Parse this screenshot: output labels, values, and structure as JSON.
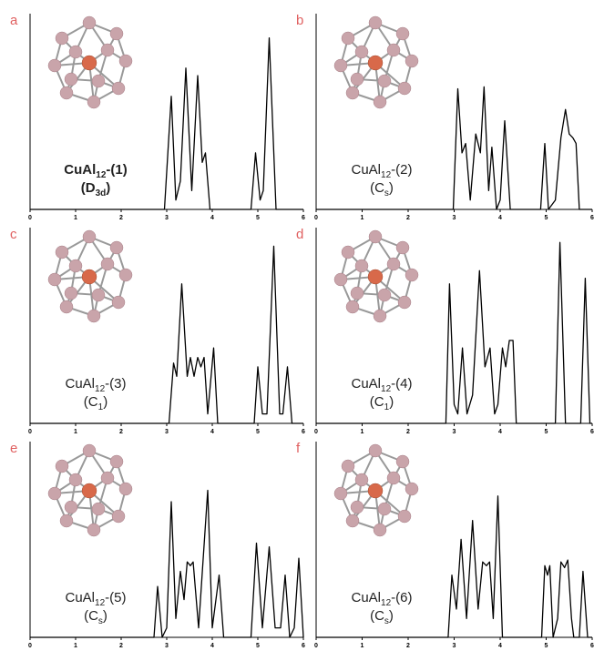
{
  "chart_data": [
    {
      "type": "line",
      "panel": "a",
      "bold": true,
      "label": {
        "text": "CuAl",
        "sub": "12",
        "sup": "-",
        "rest": "(1)"
      },
      "symmetry": {
        "text": "(D",
        "sub": "3d",
        "rest": ")"
      },
      "xlim": [
        0,
        6
      ],
      "xticks": [
        0,
        1,
        2,
        3,
        4,
        5,
        6
      ],
      "ylim": [
        0,
        1
      ],
      "color": "#000000",
      "x": [
        0,
        2.95,
        3.1,
        3.2,
        3.3,
        3.42,
        3.55,
        3.68,
        3.78,
        3.85,
        3.95,
        4.85,
        4.95,
        5.05,
        5.12,
        5.25,
        5.4,
        6
      ],
      "values": [
        0,
        0,
        0.6,
        0.05,
        0.15,
        0.75,
        0.1,
        0.71,
        0.25,
        0.3,
        0,
        0,
        0.3,
        0.05,
        0.1,
        0.91,
        0,
        0
      ]
    },
    {
      "type": "line",
      "panel": "b",
      "bold": false,
      "label": {
        "text": "CuAl",
        "sub": "12",
        "sup": "-",
        "rest": "(2)"
      },
      "symmetry": {
        "text": "(C",
        "sub": "s",
        "rest": ")"
      },
      "xlim": [
        0,
        6
      ],
      "xticks": [
        0,
        1,
        2,
        3,
        4,
        5,
        6
      ],
      "ylim": [
        0,
        1
      ],
      "color": "#000000",
      "x": [
        0,
        2.98,
        3.08,
        3.17,
        3.25,
        3.35,
        3.47,
        3.57,
        3.65,
        3.75,
        3.82,
        3.92,
        4.0,
        4.1,
        4.22,
        4.88,
        4.97,
        5.05,
        5.2,
        5.32,
        5.42,
        5.5,
        5.58,
        5.65,
        5.72,
        6
      ],
      "values": [
        0,
        0,
        0.64,
        0.3,
        0.35,
        0.05,
        0.4,
        0.3,
        0.65,
        0.1,
        0.33,
        0,
        0.05,
        0.47,
        0,
        0,
        0.35,
        0,
        0.05,
        0.38,
        0.53,
        0.4,
        0.38,
        0.35,
        0,
        0
      ]
    },
    {
      "type": "line",
      "panel": "c",
      "bold": false,
      "label": {
        "text": "CuAl",
        "sub": "12",
        "sup": "-",
        "rest": "(3)"
      },
      "symmetry": {
        "text": "(C",
        "sub": "1",
        "rest": ")"
      },
      "xlim": [
        0,
        6
      ],
      "xticks": [
        0,
        1,
        2,
        3,
        4,
        5,
        6
      ],
      "ylim": [
        0,
        1
      ],
      "color": "#000000",
      "x": [
        0,
        3.05,
        3.15,
        3.22,
        3.33,
        3.45,
        3.52,
        3.6,
        3.68,
        3.75,
        3.82,
        3.9,
        4.03,
        4.12,
        4.92,
        5.0,
        5.1,
        5.2,
        5.35,
        5.48,
        5.55,
        5.65,
        5.75,
        6
      ],
      "values": [
        0,
        0,
        0.32,
        0.25,
        0.74,
        0.25,
        0.35,
        0.25,
        0.35,
        0.3,
        0.35,
        0.05,
        0.4,
        0,
        0,
        0.3,
        0.05,
        0.05,
        0.94,
        0.05,
        0.05,
        0.3,
        0,
        0
      ]
    },
    {
      "type": "line",
      "panel": "d",
      "bold": false,
      "label": {
        "text": "CuAl",
        "sub": "12",
        "sup": "-",
        "rest": "(4)"
      },
      "symmetry": {
        "text": "(C",
        "sub": "1",
        "rest": ")"
      },
      "xlim": [
        0,
        6
      ],
      "xticks": [
        0,
        1,
        2,
        3,
        4,
        5,
        6
      ],
      "ylim": [
        0,
        1
      ],
      "color": "#000000",
      "x": [
        0,
        2.82,
        2.9,
        3.0,
        3.08,
        3.18,
        3.28,
        3.4,
        3.55,
        3.67,
        3.78,
        3.88,
        3.95,
        4.05,
        4.12,
        4.2,
        4.28,
        4.35,
        5.2,
        5.3,
        5.42,
        5.75,
        5.85,
        5.95,
        6
      ],
      "values": [
        0,
        0,
        0.74,
        0.1,
        0.05,
        0.4,
        0.05,
        0.15,
        0.81,
        0.3,
        0.4,
        0.05,
        0.1,
        0.4,
        0.3,
        0.44,
        0.44,
        0,
        0,
        0.96,
        0,
        0,
        0.77,
        0,
        0
      ]
    },
    {
      "type": "line",
      "panel": "e",
      "bold": false,
      "label": {
        "text": "CuAl",
        "sub": "12",
        "sup": "-",
        "rest": "(5)"
      },
      "symmetry": {
        "text": "(C",
        "sub": "s",
        "rest": ")"
      },
      "xlim": [
        0,
        6
      ],
      "xticks": [
        0,
        1,
        2,
        3,
        4,
        5,
        6
      ],
      "ylim": [
        0,
        1
      ],
      "color": "#000000",
      "x": [
        0,
        2.72,
        2.8,
        2.9,
        3.0,
        3.1,
        3.2,
        3.3,
        3.38,
        3.45,
        3.52,
        3.58,
        3.7,
        3.9,
        4.0,
        4.15,
        4.25,
        4.85,
        4.97,
        5.1,
        5.25,
        5.38,
        5.5,
        5.6,
        5.7,
        5.8,
        5.9,
        6
      ],
      "values": [
        0,
        0,
        0.27,
        0,
        0.05,
        0.72,
        0.1,
        0.35,
        0.2,
        0.4,
        0.38,
        0.4,
        0.05,
        0.78,
        0.05,
        0.33,
        0,
        0,
        0.5,
        0.05,
        0.48,
        0.05,
        0.05,
        0.33,
        0,
        0.05,
        0.42,
        0
      ]
    },
    {
      "type": "line",
      "panel": "f",
      "bold": false,
      "label": {
        "text": "CuAl",
        "sub": "12",
        "sup": "-",
        "rest": "(6)"
      },
      "symmetry": {
        "text": "(C",
        "sub": "s",
        "rest": ")"
      },
      "xlim": [
        0,
        6
      ],
      "xticks": [
        0,
        1,
        2,
        3,
        4,
        5,
        6
      ],
      "ylim": [
        0,
        1
      ],
      "color": "#000000",
      "x": [
        0,
        2.87,
        2.95,
        3.05,
        3.15,
        3.27,
        3.4,
        3.52,
        3.62,
        3.7,
        3.77,
        3.85,
        3.95,
        4.05,
        4.9,
        4.97,
        5.03,
        5.08,
        5.15,
        5.25,
        5.32,
        5.4,
        5.47,
        5.55,
        5.6,
        5.72,
        5.8,
        5.9,
        6
      ],
      "values": [
        0,
        0,
        0.33,
        0.15,
        0.52,
        0.1,
        0.62,
        0.15,
        0.4,
        0.38,
        0.4,
        0.1,
        0.75,
        0,
        0,
        0.38,
        0.33,
        0.38,
        0,
        0.1,
        0.4,
        0.37,
        0.41,
        0.1,
        0,
        0,
        0.35,
        0,
        0
      ]
    }
  ]
}
